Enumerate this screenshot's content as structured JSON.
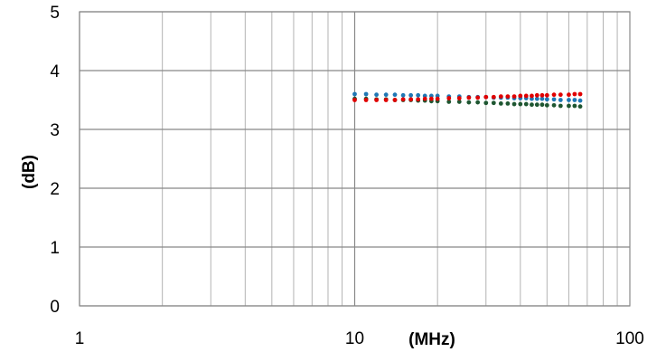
{
  "chart_data": {
    "type": "scatter",
    "xlabel": "(MHz)",
    "ylabel": "(dB)",
    "x_scale": "log",
    "xlim": [
      1,
      100
    ],
    "ylim": [
      0,
      5
    ],
    "grid": true,
    "x_ticks": [
      "1",
      "10",
      "100"
    ],
    "y_ticks": [
      "0",
      "1",
      "2",
      "3",
      "4",
      "5"
    ],
    "x": [
      10,
      11,
      12,
      13,
      14,
      15,
      16,
      17,
      18,
      19,
      20,
      22,
      24,
      26,
      28,
      30,
      32,
      34,
      36,
      38,
      40,
      42,
      44,
      46,
      48,
      50,
      53,
      56,
      60,
      63,
      66
    ],
    "series": [
      {
        "color": "#1f77b4",
        "values": [
          3.6,
          3.6,
          3.59,
          3.59,
          3.59,
          3.58,
          3.58,
          3.58,
          3.57,
          3.57,
          3.57,
          3.56,
          3.56,
          3.55,
          3.55,
          3.55,
          3.54,
          3.54,
          3.54,
          3.53,
          3.53,
          3.53,
          3.52,
          3.52,
          3.52,
          3.51,
          3.51,
          3.5,
          3.5,
          3.5,
          3.49
        ]
      },
      {
        "color": "#1e5631",
        "values": [
          3.52,
          3.52,
          3.51,
          3.51,
          3.5,
          3.5,
          3.5,
          3.49,
          3.49,
          3.48,
          3.48,
          3.47,
          3.47,
          3.46,
          3.46,
          3.45,
          3.45,
          3.44,
          3.44,
          3.43,
          3.43,
          3.43,
          3.42,
          3.42,
          3.42,
          3.41,
          3.41,
          3.4,
          3.4,
          3.4,
          3.39
        ]
      },
      {
        "color": "#e00000",
        "values": [
          3.5,
          3.5,
          3.5,
          3.5,
          3.5,
          3.51,
          3.51,
          3.51,
          3.52,
          3.52,
          3.52,
          3.53,
          3.53,
          3.54,
          3.54,
          3.55,
          3.55,
          3.56,
          3.56,
          3.56,
          3.57,
          3.57,
          3.57,
          3.58,
          3.58,
          3.58,
          3.59,
          3.59,
          3.59,
          3.6,
          3.6
        ]
      }
    ]
  }
}
